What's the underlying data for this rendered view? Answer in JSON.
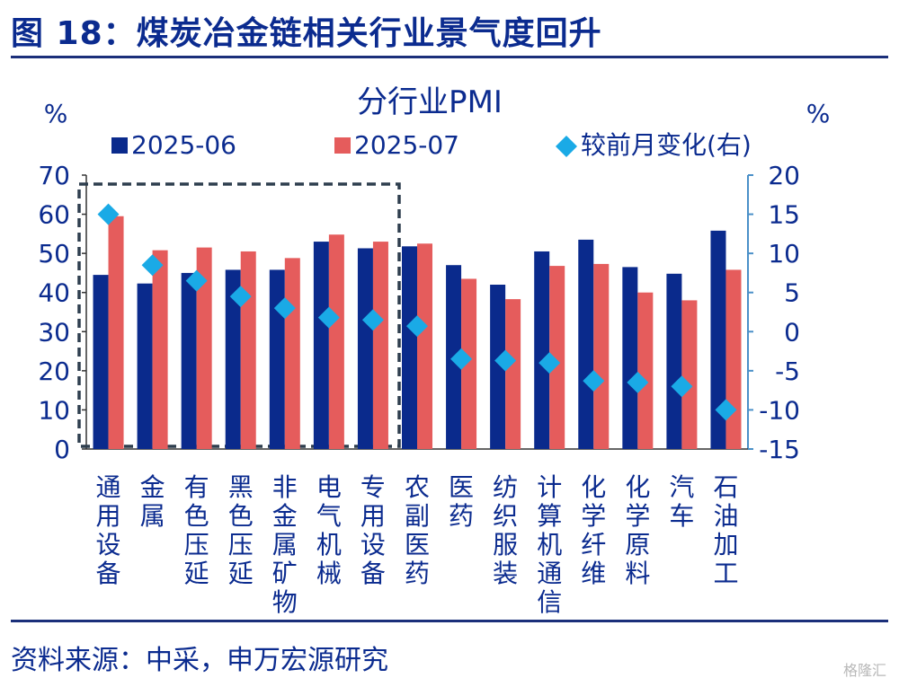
{
  "figure_title": "图 18：煤炭冶金链相关行业景气度回升",
  "source_text": "资料来源：中采，申万宏源研究",
  "watermark": "格隆汇",
  "colors": {
    "series_2025_06": "#0a2a8c",
    "series_2025_07": "#e55c5c",
    "change": "#1aaae6",
    "axis_right": "#4a90c8",
    "text": "#0b2b8f",
    "box": "#2e3e4e"
  },
  "chart_data": {
    "type": "bar",
    "title": "分行业PMI",
    "y_left_unit": "%",
    "y_right_unit": "%",
    "ylim_left": [
      0,
      70
    ],
    "ylim_right": [
      -15,
      20
    ],
    "yticks_left": [
      "70",
      "60",
      "50",
      "40",
      "30",
      "20",
      "10",
      "0"
    ],
    "yticks_right": [
      "20",
      "15",
      "10",
      "5",
      "0",
      "-5",
      "-10",
      "-15"
    ],
    "categories": [
      "通用设备",
      "金属",
      "有色压延",
      "黑色压延",
      "非金属矿物",
      "电气机械",
      "专用设备",
      "农副医药",
      "医药",
      "纺织服装",
      "计算机通信",
      "化学纤维",
      "化学原料",
      "汽车",
      "石油加工"
    ],
    "series": [
      {
        "name": "2025-06",
        "axis": "left",
        "values": [
          44.5,
          42.3,
          45.0,
          45.8,
          45.8,
          53.0,
          51.3,
          51.8,
          47.0,
          42.0,
          50.5,
          53.5,
          46.5,
          44.8,
          55.8
        ]
      },
      {
        "name": "2025-07",
        "axis": "left",
        "values": [
          59.5,
          50.8,
          51.5,
          50.5,
          48.8,
          54.8,
          53.0,
          52.5,
          43.5,
          38.3,
          46.8,
          47.3,
          40.0,
          38.0,
          45.8
        ]
      },
      {
        "name": "较前月变化(右)",
        "axis": "right",
        "type": "scatter",
        "values": [
          15.0,
          8.5,
          6.5,
          4.5,
          3.0,
          1.8,
          1.5,
          0.7,
          -3.5,
          -3.7,
          -4.0,
          -6.3,
          -6.5,
          -7.0,
          -10.0
        ]
      }
    ],
    "legend": [
      "2025-06",
      "2025-07",
      "较前月变化(右)"
    ],
    "legend_position": "top",
    "grid": false,
    "annotation": "dashed box highlighting the first seven industries"
  }
}
